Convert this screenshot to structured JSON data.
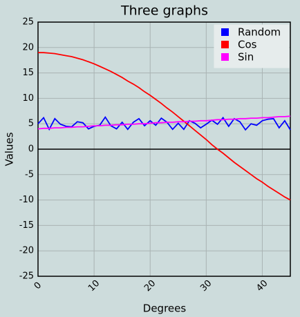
{
  "chart_data": {
    "type": "line",
    "title": "Three graphs",
    "x_label": "Degrees",
    "y_label": "Values",
    "x": [
      0,
      1,
      2,
      3,
      4,
      5,
      6,
      7,
      8,
      9,
      10,
      11,
      12,
      13,
      14,
      15,
      16,
      17,
      18,
      19,
      20,
      21,
      22,
      23,
      24,
      25,
      26,
      27,
      28,
      29,
      30,
      31,
      32,
      33,
      34,
      35,
      36,
      37,
      38,
      39,
      40,
      41,
      42,
      43,
      44,
      45
    ],
    "series": [
      {
        "name": "Random",
        "color": "#0000ff",
        "values": [
          5.0,
          6.2,
          3.9,
          6.0,
          4.9,
          4.5,
          4.4,
          5.4,
          5.2,
          4.0,
          4.5,
          4.7,
          6.3,
          4.6,
          4.0,
          5.3,
          3.9,
          5.3,
          6.0,
          4.6,
          5.6,
          4.7,
          6.1,
          5.3,
          3.9,
          5.1,
          3.9,
          5.6,
          5.1,
          4.2,
          4.9,
          5.7,
          4.9,
          6.2,
          4.5,
          6.0,
          5.4,
          3.8,
          5.0,
          4.7,
          5.6,
          5.9,
          6.0,
          4.2,
          5.6,
          3.8
        ]
      },
      {
        "name": "Cos",
        "color": "#ff0000",
        "values": [
          19.0,
          19.0,
          18.9,
          18.8,
          18.6,
          18.4,
          18.2,
          17.9,
          17.6,
          17.2,
          16.8,
          16.3,
          15.8,
          15.3,
          14.7,
          14.1,
          13.4,
          12.8,
          12.1,
          11.3,
          10.6,
          9.8,
          9.0,
          8.1,
          7.3,
          6.4,
          5.5,
          4.6,
          3.7,
          2.8,
          1.9,
          0.9,
          0.0,
          -0.8,
          -1.7,
          -2.6,
          -3.4,
          -4.2,
          -5.0,
          -5.8,
          -6.5,
          -7.3,
          -8.0,
          -8.7,
          -9.4,
          -10.0
        ]
      },
      {
        "name": "Sin",
        "color": "#ff00ff",
        "values": [
          4.0,
          4.1,
          4.1,
          4.2,
          4.2,
          4.3,
          4.3,
          4.4,
          4.4,
          4.5,
          4.6,
          4.6,
          4.7,
          4.7,
          4.8,
          4.8,
          4.9,
          4.9,
          5.0,
          5.0,
          5.1,
          5.2,
          5.2,
          5.3,
          5.3,
          5.4,
          5.4,
          5.5,
          5.5,
          5.6,
          5.6,
          5.7,
          5.8,
          5.8,
          5.9,
          5.9,
          6.0,
          6.0,
          6.1,
          6.1,
          6.2,
          6.2,
          6.3,
          6.4,
          6.4,
          6.5
        ]
      }
    ],
    "xlim": [
      0,
      45
    ],
    "ylim": [
      -25,
      25
    ],
    "xticks": [
      0,
      10,
      20,
      30,
      40
    ],
    "yticks": [
      -25,
      -20,
      -15,
      -10,
      -5,
      0,
      5,
      10,
      15,
      20,
      25
    ],
    "grid": true,
    "legend": "upper right",
    "legend_text_color": "#008000"
  }
}
